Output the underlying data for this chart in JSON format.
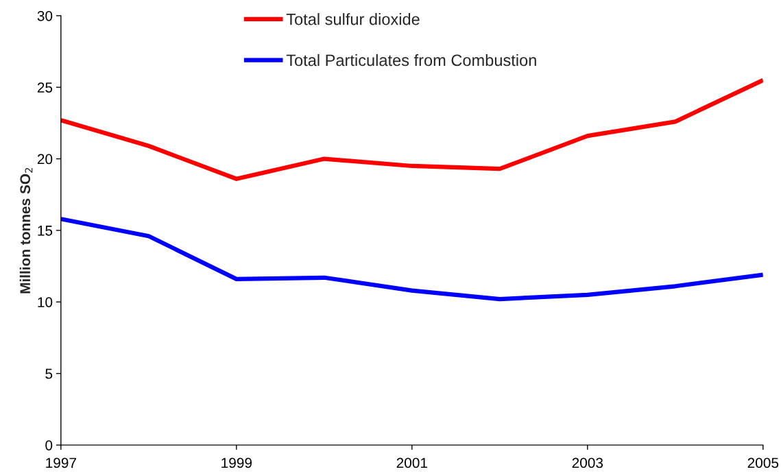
{
  "chart_data": {
    "type": "line",
    "ylabel": "Million tonnes SO$_{2}$",
    "x": [
      1997,
      1998,
      1999,
      2000,
      2001,
      2002,
      2003,
      2004,
      2005
    ],
    "series": [
      {
        "name": "Total sulfur dioxide",
        "color": "#ff0000",
        "values": [
          22.7,
          20.9,
          18.6,
          20.0,
          19.5,
          19.3,
          21.6,
          22.6,
          25.5
        ]
      },
      {
        "name": "Total Particulates from Combustion",
        "color": "#0000ff",
        "values": [
          15.8,
          14.6,
          11.6,
          11.7,
          10.8,
          10.2,
          10.5,
          11.1,
          11.9
        ]
      }
    ],
    "xlim": [
      1997,
      2005
    ],
    "ylim": [
      0,
      30
    ],
    "xticks": [
      1997,
      1999,
      2001,
      2003,
      2005
    ],
    "yticks": [
      0,
      5,
      10,
      15,
      20,
      25,
      30
    ],
    "grid": false,
    "legend": "top",
    "marker": "none",
    "line_style": "solid"
  }
}
